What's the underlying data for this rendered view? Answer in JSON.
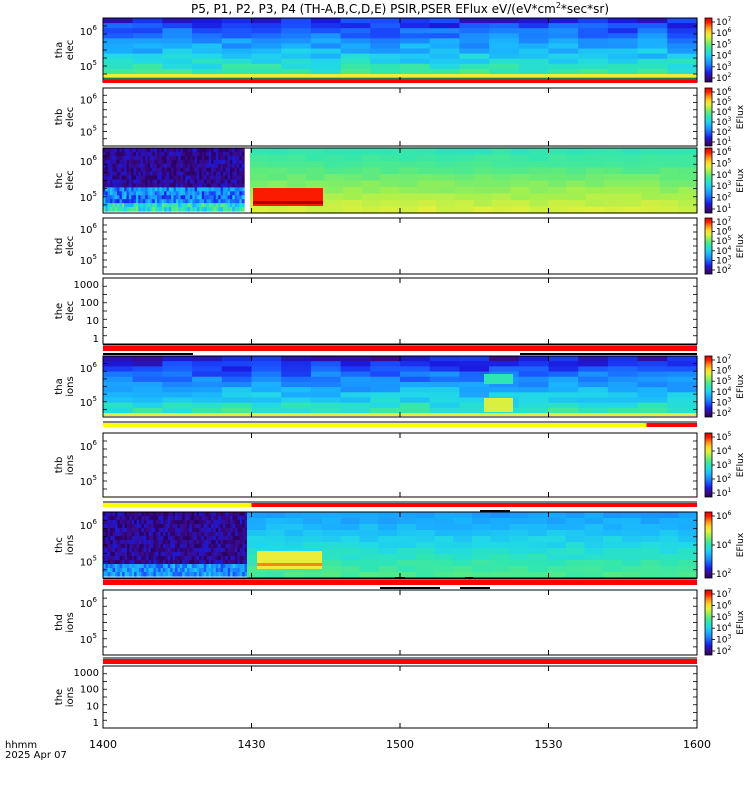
{
  "title": "P5, P1, P2, P3, P4 (TH-A,B,C,D,E) PSIR,PSER EFlux eV/(eV*cm",
  "title_sup": "2",
  "title_tail": "*sec*sr)",
  "time_axis": {
    "ticks": [
      "1400",
      "1430",
      "1500",
      "1530",
      "1600"
    ],
    "prefix_line1": "hhmm",
    "prefix_line2": "2025 Apr 07"
  },
  "colors": {
    "spectro_stops": [
      "#2a0060",
      "#3a0a8a",
      "#1a1ae0",
      "#1a50ff",
      "#1a8cff",
      "#1ab4ff",
      "#21d8e8",
      "#2ee6b4",
      "#58ea82",
      "#a0f050",
      "#e8f03c",
      "#ffd428",
      "#ff8a14",
      "#ff2000",
      "#e00000"
    ],
    "flag_red": "#ff0000",
    "flag_yellow": "#ffff00",
    "flag_black": "#000000"
  },
  "chart_data": [
    {
      "type": "heatmap",
      "probe": "tha",
      "species": "elec",
      "ylabel_line1": "tha",
      "ylabel_line2": "elec",
      "y_ticks": [
        {
          "base": "10",
          "exp": "6"
        },
        {
          "base": "10",
          "exp": "5"
        }
      ],
      "colorbar": {
        "label": "",
        "ticks": [
          {
            "b": "10",
            "e": "7"
          },
          {
            "b": "10",
            "e": "6"
          },
          {
            "b": "10",
            "e": "5"
          },
          {
            "b": "10",
            "e": "4"
          },
          {
            "b": "10",
            "e": "3"
          },
          {
            "b": "10",
            "e": "2"
          }
        ]
      }
    },
    {
      "type": "heatmap",
      "probe": "thb",
      "species": "elec",
      "ylabel_line1": "thb",
      "ylabel_line2": "elec",
      "y_ticks": [
        {
          "base": "10",
          "exp": "6"
        },
        {
          "base": "10",
          "exp": "5"
        }
      ],
      "colorbar": {
        "label": "EFlux",
        "ticks": [
          {
            "b": "10",
            "e": "6"
          },
          {
            "b": "10",
            "e": "5"
          },
          {
            "b": "10",
            "e": "4"
          },
          {
            "b": "10",
            "e": "3"
          },
          {
            "b": "10",
            "e": "2"
          },
          {
            "b": "10",
            "e": "1"
          }
        ]
      }
    },
    {
      "type": "heatmap",
      "probe": "thc",
      "species": "elec",
      "ylabel_line1": "thc",
      "ylabel_line2": "elec",
      "y_ticks": [
        {
          "base": "10",
          "exp": "6"
        },
        {
          "base": "10",
          "exp": "5"
        }
      ],
      "colorbar": {
        "label": "EFlux",
        "ticks": [
          {
            "b": "10",
            "e": "6"
          },
          {
            "b": "10",
            "e": "5"
          },
          {
            "b": "10",
            "e": "4"
          },
          {
            "b": "10",
            "e": "3"
          },
          {
            "b": "10",
            "e": "2"
          },
          {
            "b": "10",
            "e": "1"
          }
        ]
      }
    },
    {
      "type": "heatmap",
      "probe": "thd",
      "species": "elec",
      "ylabel_line1": "thd",
      "ylabel_line2": "elec",
      "y_ticks": [
        {
          "base": "10",
          "exp": "6"
        },
        {
          "base": "10",
          "exp": "5"
        }
      ],
      "colorbar": {
        "label": "EFlux",
        "ticks": [
          {
            "b": "10",
            "e": "7"
          },
          {
            "b": "10",
            "e": "6"
          },
          {
            "b": "10",
            "e": "5"
          },
          {
            "b": "10",
            "e": "4"
          },
          {
            "b": "10",
            "e": "3"
          },
          {
            "b": "10",
            "e": "2"
          }
        ]
      }
    },
    {
      "type": "heatmap",
      "probe": "the",
      "species": "elec",
      "ylabel_line1": "the",
      "ylabel_line2": "elec",
      "y_ticks": [
        {
          "label": "1000"
        },
        {
          "label": "100"
        },
        {
          "label": "10"
        },
        {
          "label": "1"
        }
      ],
      "colorbar": null
    },
    {
      "type": "heatmap",
      "probe": "tha",
      "species": "ions",
      "ylabel_line1": "tha",
      "ylabel_line2": "ions",
      "y_ticks": [
        {
          "base": "10",
          "exp": "6"
        },
        {
          "base": "10",
          "exp": "5"
        }
      ],
      "colorbar": {
        "label": "EFlux",
        "ticks": [
          {
            "b": "10",
            "e": "7"
          },
          {
            "b": "10",
            "e": "6"
          },
          {
            "b": "10",
            "e": "5"
          },
          {
            "b": "10",
            "e": "4"
          },
          {
            "b": "10",
            "e": "3"
          },
          {
            "b": "10",
            "e": "2"
          }
        ]
      }
    },
    {
      "type": "heatmap",
      "probe": "thb",
      "species": "ions",
      "ylabel_line1": "thb",
      "ylabel_line2": "ions",
      "y_ticks": [
        {
          "base": "10",
          "exp": "6"
        },
        {
          "base": "10",
          "exp": "5"
        }
      ],
      "colorbar": {
        "label": "EFlux",
        "ticks": [
          {
            "b": "10",
            "e": "5"
          },
          {
            "b": "10",
            "e": "4"
          },
          {
            "b": "10",
            "e": "3"
          },
          {
            "b": "10",
            "e": "2"
          },
          {
            "b": "10",
            "e": "1"
          }
        ]
      }
    },
    {
      "type": "heatmap",
      "probe": "thc",
      "species": "ions",
      "ylabel_line1": "thc",
      "ylabel_line2": "ions",
      "y_ticks": [
        {
          "base": "10",
          "exp": "6"
        },
        {
          "base": "10",
          "exp": "5"
        }
      ],
      "colorbar": {
        "label": "EFlux",
        "ticks": [
          {
            "b": "10",
            "e": "6"
          },
          {
            "b": "10",
            "e": "4"
          },
          {
            "b": "10",
            "e": "2"
          }
        ]
      }
    },
    {
      "type": "heatmap",
      "probe": "thd",
      "species": "ions",
      "ylabel_line1": "thd",
      "ylabel_line2": "ions",
      "y_ticks": [
        {
          "base": "10",
          "exp": "6"
        },
        {
          "base": "10",
          "exp": "5"
        }
      ],
      "colorbar": {
        "label": "EFlux",
        "ticks": [
          {
            "b": "10",
            "e": "7"
          },
          {
            "b": "10",
            "e": "6"
          },
          {
            "b": "10",
            "e": "5"
          },
          {
            "b": "10",
            "e": "4"
          },
          {
            "b": "10",
            "e": "3"
          },
          {
            "b": "10",
            "e": "2"
          }
        ]
      }
    },
    {
      "type": "heatmap",
      "probe": "the",
      "species": "ions",
      "ylabel_line1": "the",
      "ylabel_line2": "ions",
      "y_ticks": [
        {
          "label": "1000"
        },
        {
          "label": "100"
        },
        {
          "label": "10"
        },
        {
          "label": "1"
        }
      ],
      "colorbar": null
    }
  ]
}
